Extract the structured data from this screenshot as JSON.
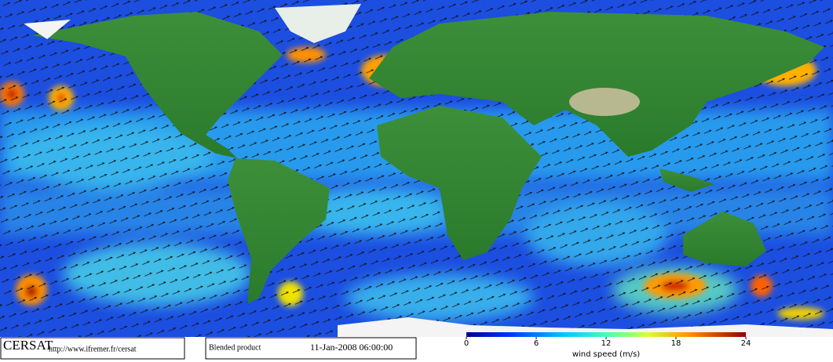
{
  "footer": {
    "logo": "CERSAT",
    "url": "http://www.ifremer.fr/cersat",
    "product": "Blended product",
    "timestamp": "11-Jan-2008 06:00:00"
  },
  "colorbar": {
    "label": "wind speed (m/s)",
    "range": [
      0,
      24
    ],
    "ticks": [
      0,
      6,
      12,
      18,
      24
    ]
  }
}
